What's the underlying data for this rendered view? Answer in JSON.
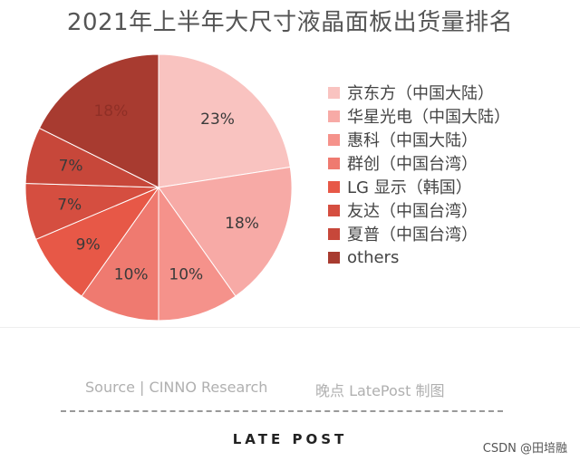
{
  "chart_data": {
    "type": "pie",
    "title": "2021年上半年大尺寸液晶面板出货量排名",
    "slices": [
      {
        "label": "京东方（中国大陆）",
        "value": 23,
        "value_label": "23%",
        "color": "#f9c3c0"
      },
      {
        "label": "华星光电（中国大陆）",
        "value": 18,
        "value_label": "18%",
        "color": "#f7aaa6"
      },
      {
        "label": "惠科（中国大陆）",
        "value": 10,
        "value_label": "10%",
        "color": "#f5928b"
      },
      {
        "label": "群创（中国台湾）",
        "value": 10,
        "value_label": "10%",
        "color": "#ef7a70"
      },
      {
        "label": "LG 显示（韩国）",
        "value": 9,
        "value_label": "9%",
        "color": "#e75847"
      },
      {
        "label": "友达（中国台湾）",
        "value": 7,
        "value_label": "7%",
        "color": "#d54e40"
      },
      {
        "label": "夏普（中国台湾）",
        "value": 7,
        "value_label": "7%",
        "color": "#c7473a"
      },
      {
        "label": "others",
        "value": 18,
        "value_label": "18%",
        "color": "#a83b30"
      }
    ],
    "start": "12 o'clock",
    "direction": "clockwise",
    "legend_position": "right"
  },
  "footer": {
    "source": "Source | CINNO Research",
    "credit": "晚点 LatePost 制图",
    "logo": "LATE POST",
    "watermark": "CSDN @田培融"
  }
}
